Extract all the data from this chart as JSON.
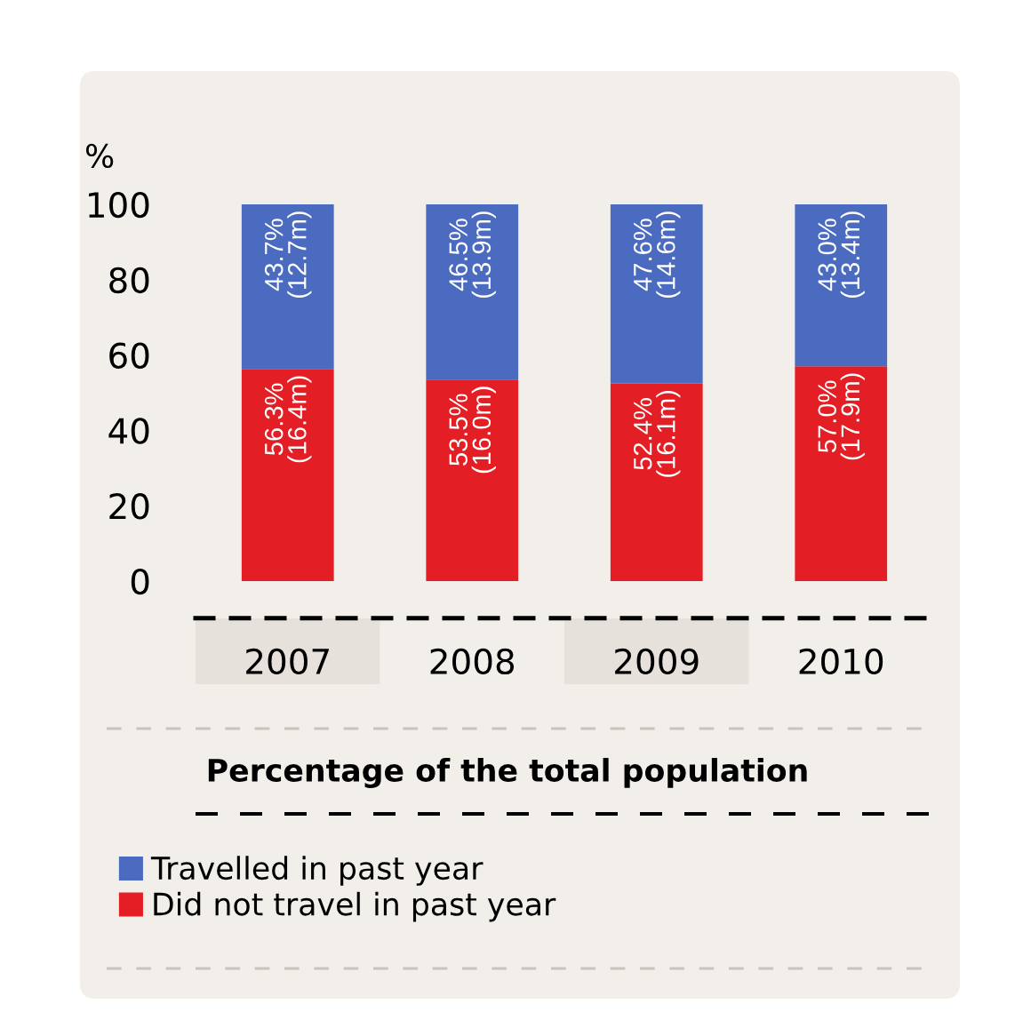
{
  "chart_data": {
    "type": "bar",
    "stacked": true,
    "title": "Percentage of the total population",
    "ylabel": "%",
    "categories": [
      "2007",
      "2008",
      "2009",
      "2010"
    ],
    "series": [
      {
        "name": "Did not travel in past year",
        "color": "#e31e24",
        "values": [
          56.3,
          53.5,
          52.4,
          57.0
        ],
        "value_labels": [
          "56.3%\n(16.4m)",
          "53.5%\n(16.0m)",
          "52.4%\n(16.1m)",
          "57.0%\n(17.9m)"
        ]
      },
      {
        "name": "Travelled in past year",
        "color": "#4a6bbf",
        "values": [
          43.7,
          46.5,
          47.6,
          43.0
        ],
        "value_labels": [
          "43.7%\n(12.7m)",
          "46.5%\n(13.9m)",
          "47.6%\n(14.6m)",
          "43.0%\n(13.4m)"
        ]
      }
    ],
    "ylim": [
      0,
      100
    ],
    "yticks": [
      0,
      20,
      40,
      60,
      80,
      100
    ],
    "grid": false,
    "legend": "bottom left"
  }
}
